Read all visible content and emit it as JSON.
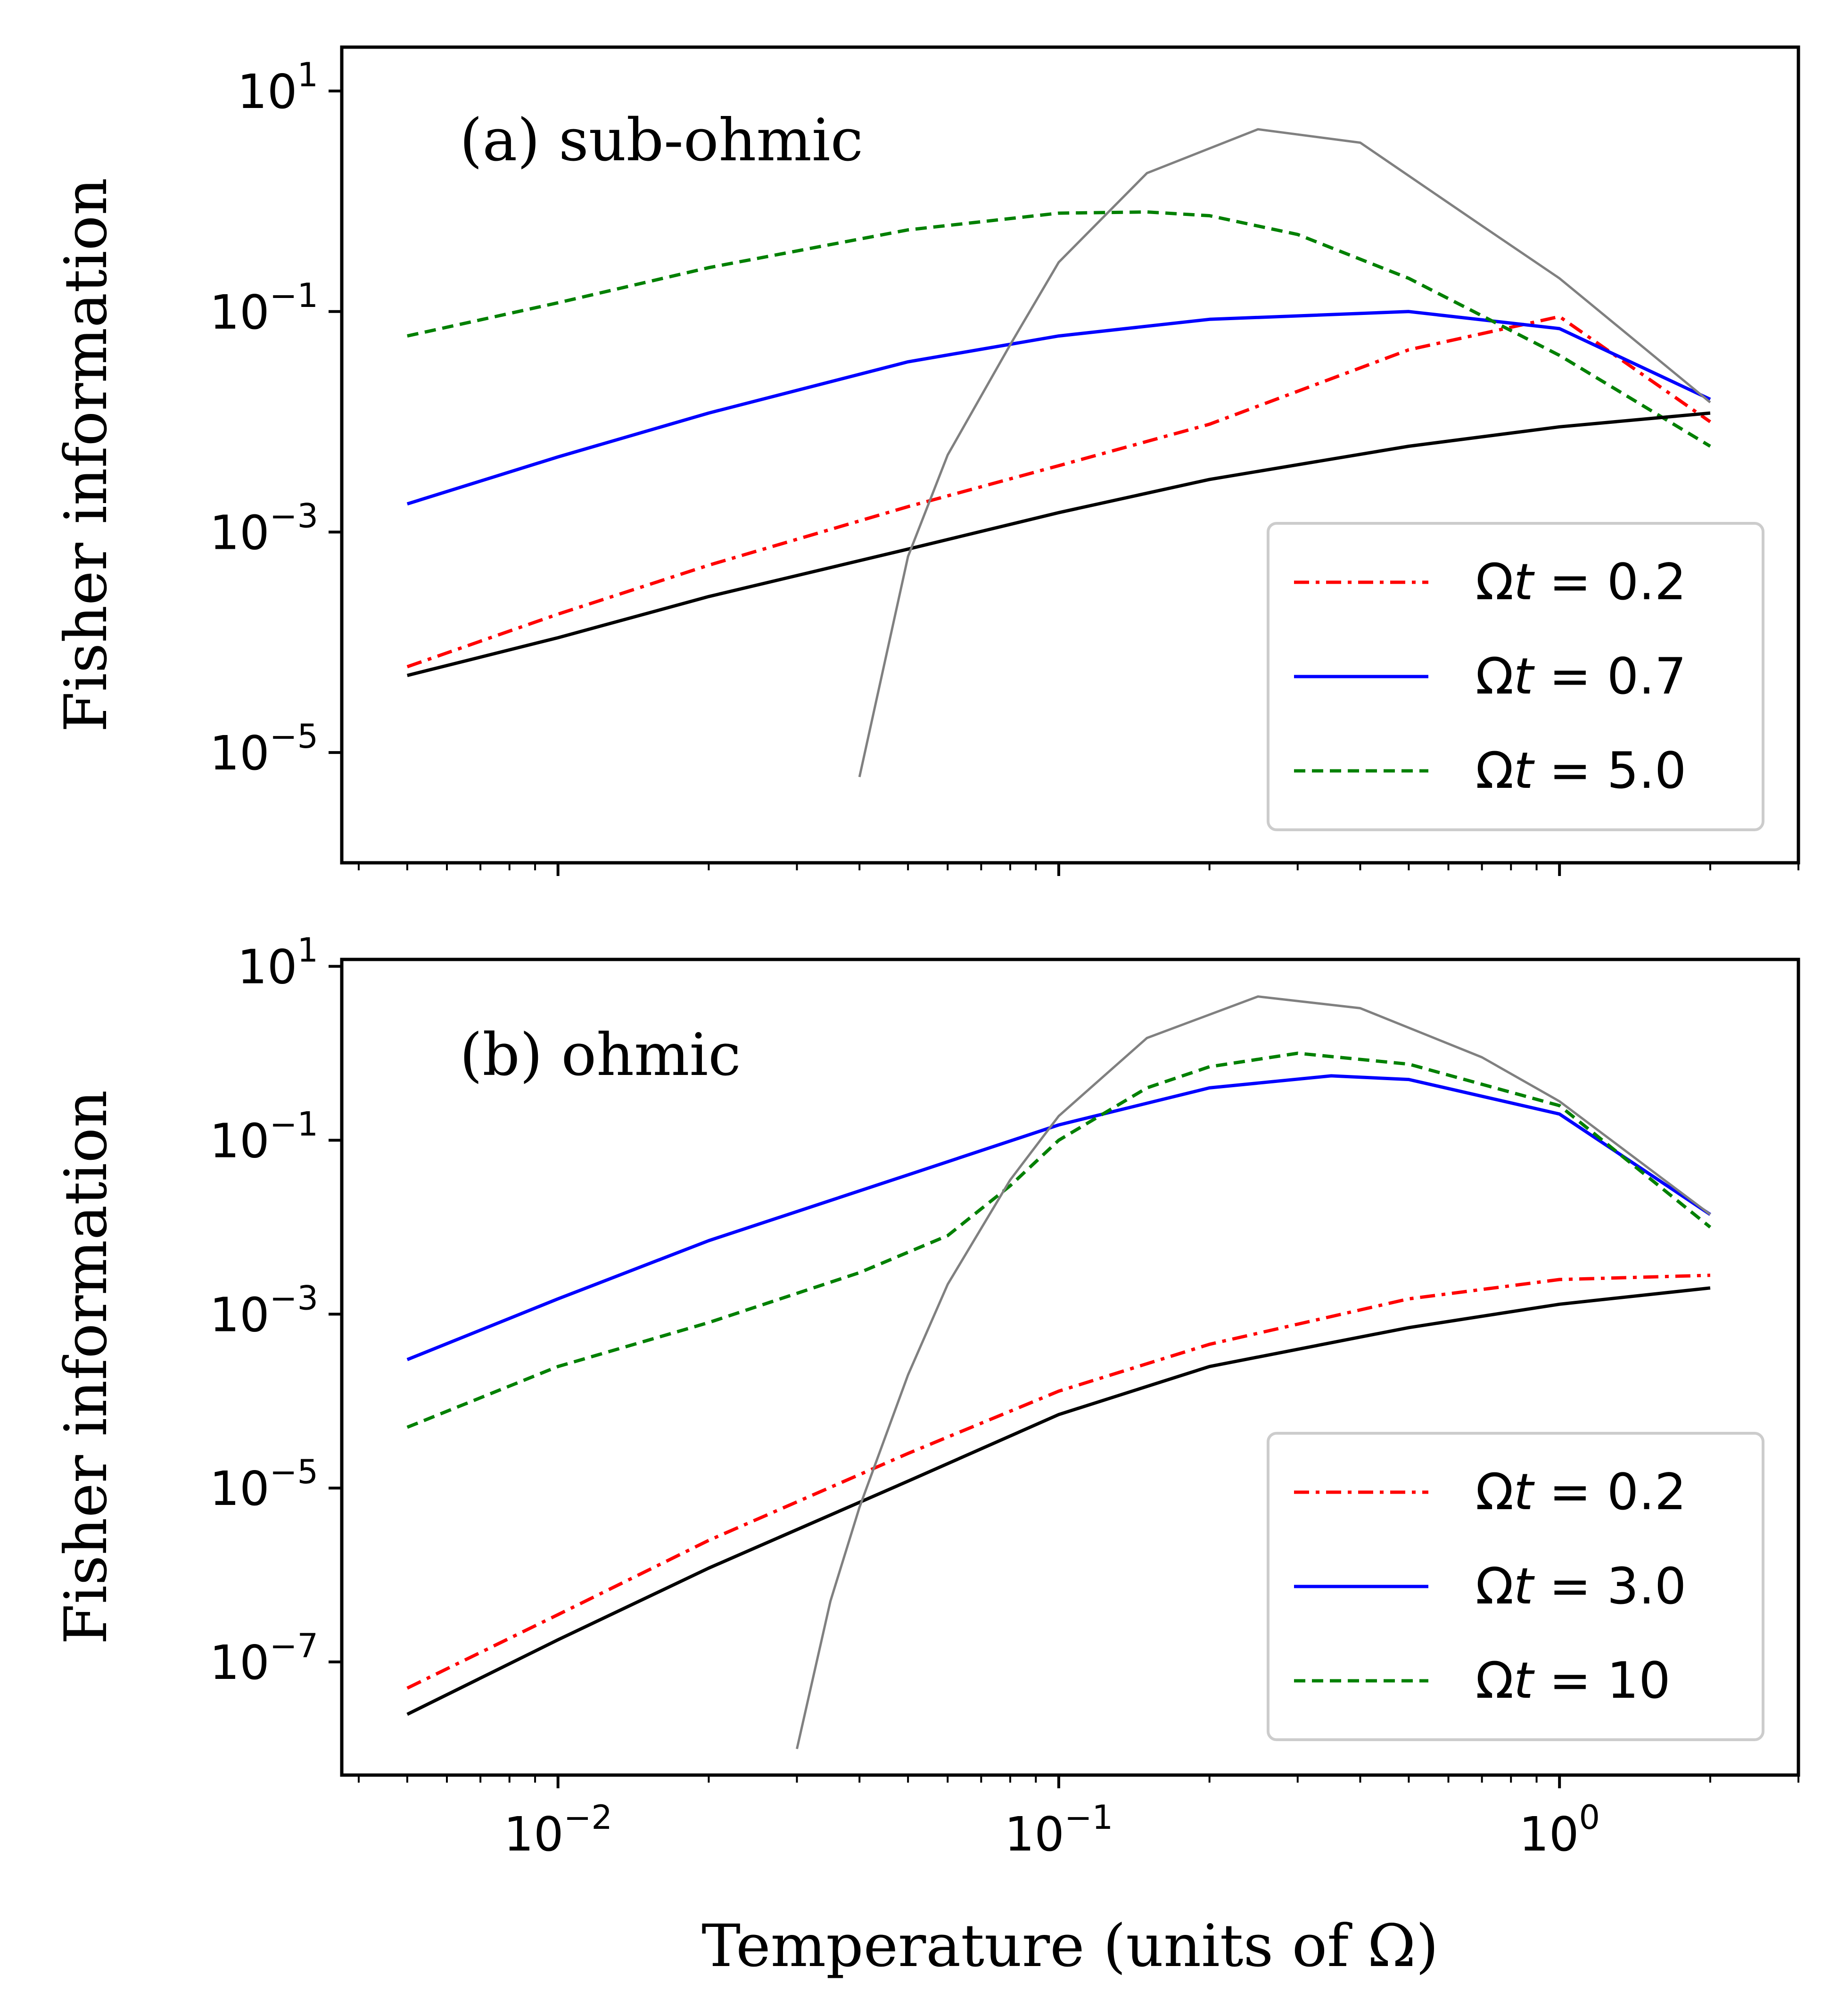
{
  "chart_data": [
    {
      "type": "line",
      "panel_label": "(a) sub-ohmic",
      "xscale": "log",
      "yscale": "log",
      "xlim": [
        0.0037,
        3.0
      ],
      "ylim": [
        1e-06,
        25
      ],
      "xlabel": "",
      "ylabel": "Fisher information",
      "ticks": [
        {
          "value": 10,
          "base": "10",
          "exp": "1"
        },
        {
          "value": 0.1,
          "base": "10",
          "exp": "−1"
        },
        {
          "value": 0.001,
          "base": "10",
          "exp": "−3"
        },
        {
          "value": 1e-05,
          "base": "10",
          "exp": "−5"
        }
      ],
      "legend_position": "lower-right",
      "legend": [
        {
          "series": "omega_t_0.2",
          "prefix": "Ω",
          "var": "t",
          "suffix": " = 0.2"
        },
        {
          "series": "omega_t_0.7",
          "prefix": "Ω",
          "var": "t",
          "suffix": " = 0.7"
        },
        {
          "series": "omega_t_5.0",
          "prefix": "Ω",
          "var": "t",
          "suffix": " = 5.0"
        }
      ],
      "series": [
        {
          "name": "omega_t_0.2",
          "color": "#ff0000",
          "style": "dashdot",
          "x": [
            0.005,
            0.01,
            0.02,
            0.05,
            0.1,
            0.2,
            0.5,
            1.0,
            2.0
          ],
          "y": [
            6e-05,
            0.00018,
            0.0005,
            0.0017,
            0.004,
            0.0095,
            0.045,
            0.09,
            0.01
          ]
        },
        {
          "name": "omega_t_0.7",
          "color": "#0000ff",
          "style": "solid",
          "x": [
            0.005,
            0.01,
            0.02,
            0.05,
            0.1,
            0.2,
            0.5,
            1.0,
            2.0
          ],
          "y": [
            0.0018,
            0.0048,
            0.012,
            0.035,
            0.06,
            0.085,
            0.1,
            0.07,
            0.016
          ]
        },
        {
          "name": "omega_t_5.0",
          "color": "#008000",
          "style": "dashed",
          "x": [
            0.005,
            0.01,
            0.02,
            0.05,
            0.1,
            0.15,
            0.2,
            0.3,
            0.5,
            1.0,
            2.0
          ],
          "y": [
            0.06,
            0.12,
            0.25,
            0.55,
            0.78,
            0.8,
            0.74,
            0.5,
            0.2,
            0.04,
            0.006
          ]
        },
        {
          "name": "reference_black",
          "color": "#000000",
          "style": "solid",
          "x": [
            0.005,
            0.01,
            0.02,
            0.05,
            0.1,
            0.2,
            0.5,
            1.0,
            2.0
          ],
          "y": [
            5e-05,
            0.00011,
            0.00026,
            0.0007,
            0.0015,
            0.003,
            0.006,
            0.009,
            0.012
          ]
        },
        {
          "name": "reference_gray",
          "color": "#808080",
          "style": "solid",
          "x": [
            0.04,
            0.05,
            0.06,
            0.08,
            0.1,
            0.15,
            0.25,
            0.4,
            0.7,
            1.0,
            2.0
          ],
          "y": [
            6e-06,
            0.0006,
            0.005,
            0.05,
            0.28,
            1.8,
            4.5,
            3.4,
            0.6,
            0.2,
            0.015
          ]
        }
      ]
    },
    {
      "type": "line",
      "panel_label": "(b) ohmic",
      "xscale": "log",
      "yscale": "log",
      "xlim": [
        0.0037,
        3.0
      ],
      "ylim": [
        5e-09,
        12
      ],
      "xlabel": "Temperature (units of Ω)",
      "ylabel": "Fisher information",
      "ticks": [
        {
          "value": 10,
          "base": "10",
          "exp": "1"
        },
        {
          "value": 0.1,
          "base": "10",
          "exp": "−1"
        },
        {
          "value": 0.001,
          "base": "10",
          "exp": "−3"
        },
        {
          "value": 1e-05,
          "base": "10",
          "exp": "−5"
        },
        {
          "value": 1e-07,
          "base": "10",
          "exp": "−7"
        }
      ],
      "xticks": [
        {
          "value": 0.01,
          "base": "10",
          "exp": "−2"
        },
        {
          "value": 0.1,
          "base": "10",
          "exp": "−1"
        },
        {
          "value": 1,
          "base": "10",
          "exp": "0"
        }
      ],
      "legend_position": "lower-right",
      "legend": [
        {
          "series": "omega_t_0.2",
          "prefix": "Ω",
          "var": "t",
          "suffix": " = 0.2"
        },
        {
          "series": "omega_t_3.0",
          "prefix": "Ω",
          "var": "t",
          "suffix": " = 3.0"
        },
        {
          "series": "omega_t_10",
          "prefix": "Ω",
          "var": "t",
          "suffix": " = 10"
        }
      ],
      "series": [
        {
          "name": "omega_t_0.2",
          "color": "#ff0000",
          "style": "dashdot",
          "x": [
            0.005,
            0.01,
            0.02,
            0.05,
            0.1,
            0.2,
            0.5,
            1.0,
            2.0
          ],
          "y": [
            5e-08,
            3.5e-07,
            2.5e-06,
            2.5e-05,
            0.00013,
            0.00045,
            0.0015,
            0.0025,
            0.0028
          ]
        },
        {
          "name": "omega_t_3.0",
          "color": "#0000ff",
          "style": "solid",
          "x": [
            0.005,
            0.01,
            0.02,
            0.05,
            0.1,
            0.2,
            0.35,
            0.5,
            1.0,
            2.0
          ],
          "y": [
            0.0003,
            0.0015,
            0.007,
            0.04,
            0.15,
            0.4,
            0.55,
            0.5,
            0.2,
            0.014
          ]
        },
        {
          "name": "omega_t_10",
          "color": "#008000",
          "style": "dashed",
          "x": [
            0.005,
            0.01,
            0.02,
            0.04,
            0.06,
            0.08,
            0.1,
            0.15,
            0.2,
            0.3,
            0.5,
            1.0,
            2.0
          ],
          "y": [
            5e-05,
            0.00025,
            0.0008,
            0.003,
            0.008,
            0.03,
            0.1,
            0.4,
            0.7,
            1.0,
            0.75,
            0.25,
            0.01
          ]
        },
        {
          "name": "reference_black",
          "color": "#000000",
          "style": "solid",
          "x": [
            0.005,
            0.01,
            0.02,
            0.05,
            0.1,
            0.2,
            0.5,
            1.0,
            2.0
          ],
          "y": [
            2.5e-08,
            1.8e-07,
            1.2e-06,
            1.2e-05,
            7e-05,
            0.00025,
            0.0007,
            0.0013,
            0.002
          ]
        },
        {
          "name": "reference_gray",
          "color": "#808080",
          "style": "solid",
          "x": [
            0.03,
            0.035,
            0.04,
            0.05,
            0.06,
            0.08,
            0.1,
            0.15,
            0.25,
            0.4,
            0.7,
            1.0,
            2.0
          ],
          "y": [
            1e-08,
            5e-07,
            6e-06,
            0.0002,
            0.0022,
            0.035,
            0.19,
            1.5,
            4.5,
            3.3,
            0.9,
            0.28,
            0.014
          ]
        }
      ]
    }
  ]
}
